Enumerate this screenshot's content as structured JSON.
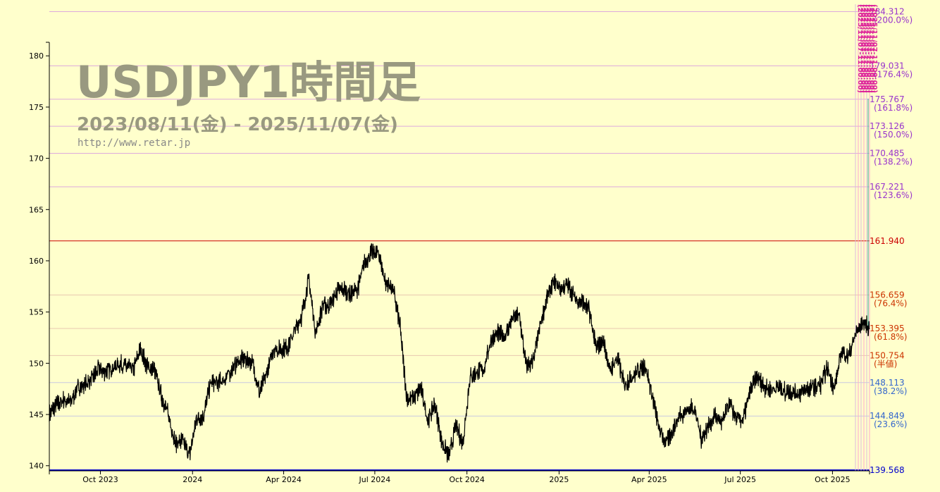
{
  "title": "USDJPY1時間足",
  "date_range": "2023/08/11(金) - 2025/11/07(金)",
  "url": "http://www.retar.jp",
  "colors": {
    "background": "#ffffcc",
    "title": "#999980",
    "url": "#888888",
    "price": "#000000",
    "upper_level": "#9933cc",
    "high_level": "#cc0000",
    "mid_level": "#cc3300",
    "lower_level": "#3366cc",
    "low_level": "#0000cc",
    "level_line_upper": "#ddaadd",
    "level_line_lower": "#ddbbbb"
  },
  "fib_time_label": "(2025/11/07-11:00:00)",
  "chart_data": {
    "type": "line",
    "series_name": "USDJPY",
    "ylim": [
      139.5,
      184.9
    ],
    "yticks": [
      140,
      145,
      150,
      155,
      160,
      165,
      170,
      175,
      180
    ],
    "xticks": [
      {
        "date": "2023-10-01",
        "label": "Oct 2023"
      },
      {
        "date": "2024-01-01",
        "label": "2024"
      },
      {
        "date": "2024-04-01",
        "label": "Apr 2024"
      },
      {
        "date": "2024-07-01",
        "label": "Jul 2024"
      },
      {
        "date": "2024-10-01",
        "label": "Oct 2024"
      },
      {
        "date": "2025-01-01",
        "label": "2025"
      },
      {
        "date": "2025-04-01",
        "label": "Apr 2025"
      },
      {
        "date": "2025-07-01",
        "label": "Jul 2025"
      },
      {
        "date": "2025-10-01",
        "label": "Oct 2025"
      }
    ],
    "x_range": [
      "2023-08-11",
      "2025-11-07"
    ],
    "levels": [
      {
        "value": "184.312",
        "pct": "(200.0%)",
        "group": "upper"
      },
      {
        "value": "179.031",
        "pct": "(176.4%)",
        "group": "upper"
      },
      {
        "value": "175.767",
        "pct": "(161.8%)",
        "group": "upper"
      },
      {
        "value": "173.126",
        "pct": "(150.0%)",
        "group": "upper"
      },
      {
        "value": "170.485",
        "pct": "(138.2%)",
        "group": "upper"
      },
      {
        "value": "167.221",
        "pct": "(123.6%)",
        "group": "upper"
      },
      {
        "value": "161.940",
        "pct": "",
        "group": "high"
      },
      {
        "value": "156.659",
        "pct": "(76.4%)",
        "group": "mid"
      },
      {
        "value": "153.395",
        "pct": "(61.8%)",
        "group": "mid"
      },
      {
        "value": "150.754",
        "pct": "(半値)",
        "group": "half"
      },
      {
        "value": "148.113",
        "pct": "(38.2%)",
        "group": "lower"
      },
      {
        "value": "144.849",
        "pct": "(23.6%)",
        "group": "lower"
      },
      {
        "value": "139.568",
        "pct": "",
        "group": "low"
      }
    ],
    "price_points": [
      [
        "2023-08-11",
        145.0
      ],
      [
        "2023-08-18",
        145.9
      ],
      [
        "2023-08-25",
        146.4
      ],
      [
        "2023-09-01",
        146.2
      ],
      [
        "2023-09-08",
        147.6
      ],
      [
        "2023-09-15",
        147.9
      ],
      [
        "2023-09-22",
        148.4
      ],
      [
        "2023-09-29",
        149.4
      ],
      [
        "2023-10-06",
        149.2
      ],
      [
        "2023-10-13",
        149.6
      ],
      [
        "2023-10-20",
        149.9
      ],
      [
        "2023-10-27",
        149.7
      ],
      [
        "2023-11-03",
        149.4
      ],
      [
        "2023-11-10",
        151.4
      ],
      [
        "2023-11-17",
        149.6
      ],
      [
        "2023-11-24",
        149.4
      ],
      [
        "2023-12-01",
        146.8
      ],
      [
        "2023-12-08",
        144.9
      ],
      [
        "2023-12-15",
        142.2
      ],
      [
        "2023-12-22",
        142.4
      ],
      [
        "2023-12-29",
        141.0
      ],
      [
        "2024-01-05",
        144.6
      ],
      [
        "2024-01-12",
        144.9
      ],
      [
        "2024-01-19",
        148.1
      ],
      [
        "2024-01-26",
        148.1
      ],
      [
        "2024-02-02",
        148.4
      ],
      [
        "2024-02-09",
        149.3
      ],
      [
        "2024-02-16",
        150.2
      ],
      [
        "2024-02-23",
        150.4
      ],
      [
        "2024-03-01",
        150.1
      ],
      [
        "2024-03-08",
        147.1
      ],
      [
        "2024-03-15",
        149.0
      ],
      [
        "2024-03-22",
        151.4
      ],
      [
        "2024-03-29",
        151.3
      ],
      [
        "2024-04-05",
        151.6
      ],
      [
        "2024-04-12",
        153.2
      ],
      [
        "2024-04-19",
        154.6
      ],
      [
        "2024-04-26",
        158.3
      ],
      [
        "2024-05-03",
        152.9
      ],
      [
        "2024-05-10",
        155.7
      ],
      [
        "2024-05-17",
        155.6
      ],
      [
        "2024-05-24",
        157.0
      ],
      [
        "2024-05-31",
        157.2
      ],
      [
        "2024-06-07",
        156.7
      ],
      [
        "2024-06-14",
        157.3
      ],
      [
        "2024-06-21",
        159.8
      ],
      [
        "2024-06-28",
        160.8
      ],
      [
        "2024-07-05",
        160.7
      ],
      [
        "2024-07-12",
        157.8
      ],
      [
        "2024-07-19",
        157.4
      ],
      [
        "2024-07-26",
        153.8
      ],
      [
        "2024-08-02",
        146.5
      ],
      [
        "2024-08-09",
        146.6
      ],
      [
        "2024-08-16",
        147.6
      ],
      [
        "2024-08-23",
        144.4
      ],
      [
        "2024-08-30",
        146.1
      ],
      [
        "2024-09-06",
        142.3
      ],
      [
        "2024-09-13",
        140.9
      ],
      [
        "2024-09-20",
        143.9
      ],
      [
        "2024-09-27",
        142.2
      ],
      [
        "2024-10-04",
        148.7
      ],
      [
        "2024-10-11",
        149.1
      ],
      [
        "2024-10-18",
        149.5
      ],
      [
        "2024-10-25",
        152.3
      ],
      [
        "2024-11-01",
        152.9
      ],
      [
        "2024-11-08",
        152.6
      ],
      [
        "2024-11-15",
        154.3
      ],
      [
        "2024-11-22",
        154.8
      ],
      [
        "2024-11-29",
        149.8
      ],
      [
        "2024-12-06",
        150.0
      ],
      [
        "2024-12-13",
        153.6
      ],
      [
        "2024-12-20",
        156.4
      ],
      [
        "2024-12-27",
        157.9
      ],
      [
        "2025-01-03",
        157.3
      ],
      [
        "2025-01-10",
        157.7
      ],
      [
        "2025-01-17",
        156.3
      ],
      [
        "2025-01-24",
        156.0
      ],
      [
        "2025-01-31",
        155.2
      ],
      [
        "2025-02-07",
        151.4
      ],
      [
        "2025-02-14",
        152.3
      ],
      [
        "2025-02-21",
        149.2
      ],
      [
        "2025-02-28",
        150.6
      ],
      [
        "2025-03-07",
        147.9
      ],
      [
        "2025-03-14",
        148.6
      ],
      [
        "2025-03-21",
        149.3
      ],
      [
        "2025-03-28",
        149.8
      ],
      [
        "2025-04-04",
        146.9
      ],
      [
        "2025-04-11",
        143.5
      ],
      [
        "2025-04-18",
        142.2
      ],
      [
        "2025-04-25",
        143.6
      ],
      [
        "2025-05-02",
        145.0
      ],
      [
        "2025-05-09",
        145.4
      ],
      [
        "2025-05-16",
        145.7
      ],
      [
        "2025-05-23",
        142.6
      ],
      [
        "2025-05-30",
        143.9
      ],
      [
        "2025-06-06",
        144.9
      ],
      [
        "2025-06-13",
        144.1
      ],
      [
        "2025-06-20",
        146.1
      ],
      [
        "2025-06-27",
        144.6
      ],
      [
        "2025-07-04",
        144.5
      ],
      [
        "2025-07-11",
        147.4
      ],
      [
        "2025-07-18",
        148.6
      ],
      [
        "2025-07-25",
        147.7
      ],
      [
        "2025-08-01",
        147.4
      ],
      [
        "2025-08-08",
        147.7
      ],
      [
        "2025-08-15",
        147.2
      ],
      [
        "2025-08-22",
        147.2
      ],
      [
        "2025-08-29",
        147.0
      ],
      [
        "2025-09-05",
        147.4
      ],
      [
        "2025-09-12",
        147.7
      ],
      [
        "2025-09-19",
        147.9
      ],
      [
        "2025-09-26",
        149.5
      ],
      [
        "2025-10-03",
        147.5
      ],
      [
        "2025-10-10",
        151.2
      ],
      [
        "2025-10-17",
        150.6
      ],
      [
        "2025-10-24",
        152.8
      ],
      [
        "2025-10-31",
        154.0
      ],
      [
        "2025-11-07",
        153.4
      ]
    ]
  }
}
